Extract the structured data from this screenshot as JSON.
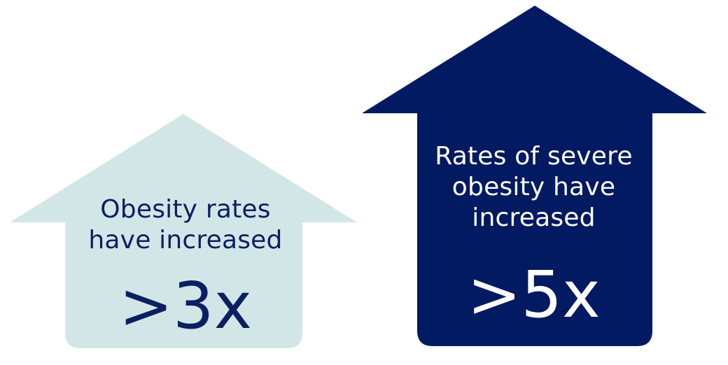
{
  "colors": {
    "light_arrow": "#d3e6e7",
    "dark_arrow": "#021a61",
    "dark_text": "#0b1f63",
    "light_text": "#ffffff"
  },
  "arrows": [
    {
      "lines": [
        "Obesity rates",
        "have increased"
      ],
      "value": ">3x"
    },
    {
      "lines": [
        "Rates of severe",
        "obesity have",
        "increased"
      ],
      "value": ">5x"
    }
  ]
}
